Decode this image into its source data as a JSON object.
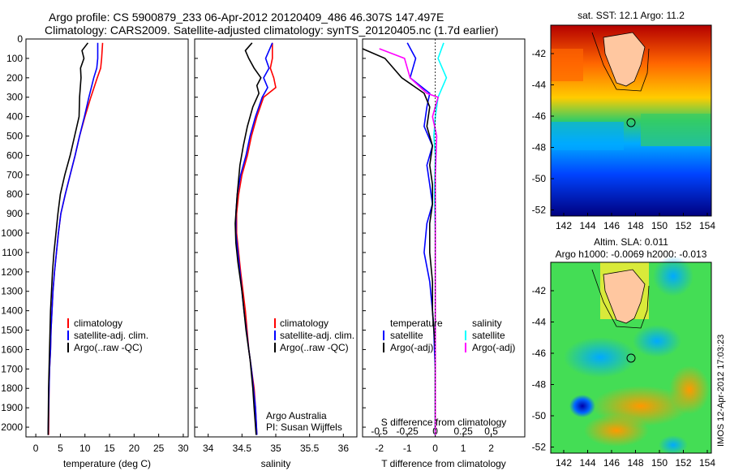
{
  "header": {
    "line1": "Argo profile: CS 5900879_233 06-Apr-2012 20120409_486 46.307S 147.497E",
    "line2": "Climatology: CARS2009. Satellite-adjusted climatology: synTS_20120405.nc (1.7d earlier)"
  },
  "side_caption": "IMOS 12-Apr-2012 17:03:23",
  "legends": {
    "temp": [
      "climatology",
      "satellite-adj. clim.",
      "Argo(..raw -QC)"
    ],
    "sal": [
      "climatology",
      "satellite-adj. clim.",
      "Argo(..raw -QC)"
    ],
    "diff_temp_title": "temperature",
    "diff_sal_title": "salinity",
    "diff_temp": [
      "satellite",
      "Argo(-adj)"
    ],
    "diff_sal": [
      "satellite",
      "Argo(-adj)"
    ]
  },
  "annotation": {
    "line1": "Argo Australia",
    "line2": "PI: Susan Wijffels"
  },
  "map_titles": {
    "sst": "sat. SST: 12.1  Argo: 11.2",
    "sla1": "Altim. SLA: 0.011",
    "sla2": "Argo h1000: -0.0069 h2000: -0.013"
  },
  "colors": {
    "climatology": "#ff0000",
    "satellite": "#0000ff",
    "argo": "#000000",
    "sal_satellite": "#00ffff",
    "sal_argo": "#ff00ff"
  },
  "chart_data": [
    {
      "type": "line",
      "xlabel": "temperature (deg C)",
      "xlim": [
        -2,
        31
      ],
      "ylim": [
        2050,
        0
      ],
      "y_ticks": [
        0,
        100,
        200,
        300,
        400,
        500,
        600,
        700,
        800,
        900,
        1000,
        1100,
        1200,
        1300,
        1400,
        1500,
        1600,
        1700,
        1800,
        1900,
        2000
      ],
      "x_ticks": [
        0,
        5,
        10,
        15,
        20,
        25,
        30
      ],
      "series": [
        {
          "name": "climatology",
          "x": [
            13.6,
            13.4,
            13.2,
            12.5,
            11.2,
            10.0,
            8.9,
            8.0,
            7.0,
            6.0,
            5.1,
            4.6,
            4.2,
            3.8,
            3.5,
            3.3,
            3.1,
            3.0,
            2.8,
            2.7,
            2.6
          ],
          "y": [
            20,
            100,
            150,
            200,
            300,
            400,
            500,
            600,
            700,
            800,
            900,
            1000,
            1100,
            1200,
            1300,
            1400,
            1500,
            1600,
            1700,
            1800,
            2040
          ]
        },
        {
          "name": "satellite-adj. clim.",
          "x": [
            12.6,
            12.6,
            12.4,
            11.8,
            10.8,
            9.9,
            8.9,
            8.0,
            7.0,
            6.0,
            5.1,
            4.6,
            4.2,
            3.8,
            3.5,
            3.3,
            3.1,
            3.0,
            2.8,
            2.7,
            2.5
          ],
          "y": [
            20,
            100,
            150,
            200,
            300,
            400,
            500,
            600,
            700,
            800,
            900,
            1000,
            1100,
            1200,
            1300,
            1400,
            1500,
            1600,
            1700,
            1800,
            2040
          ]
        },
        {
          "name": "Argo(..raw -QC)",
          "x": [
            10.6,
            9.4,
            9.8,
            9.1,
            9.2,
            8.9,
            8.8,
            7.9,
            7.0,
            5.9,
            5.0,
            4.5,
            4.1,
            3.7,
            3.4,
            3.2,
            3.0,
            2.9,
            2.8,
            2.6,
            2.5
          ],
          "y": [
            20,
            60,
            100,
            150,
            200,
            300,
            400,
            500,
            600,
            700,
            800,
            900,
            1000,
            1100,
            1200,
            1300,
            1400,
            1500,
            1600,
            1800,
            2040
          ]
        }
      ]
    },
    {
      "type": "line",
      "xlabel": "salinity",
      "xlim": [
        33.8,
        36.2
      ],
      "ylim": [
        2050,
        0
      ],
      "x_ticks": [
        34,
        34.5,
        35,
        35.5,
        36
      ],
      "series": [
        {
          "name": "climatology",
          "x": [
            34.95,
            34.95,
            34.92,
            34.97,
            35.0,
            34.82,
            34.72,
            34.64,
            34.58,
            34.5,
            34.45,
            34.42,
            34.42,
            34.45,
            34.48,
            34.55,
            34.6,
            34.64,
            34.68,
            34.7,
            34.72
          ],
          "y": [
            20,
            100,
            150,
            200,
            250,
            300,
            400,
            500,
            600,
            700,
            800,
            900,
            1000,
            1100,
            1200,
            1400,
            1600,
            1700,
            1800,
            1900,
            2040
          ]
        },
        {
          "name": "satellite-adj. clim.",
          "x": [
            34.95,
            34.85,
            34.9,
            34.82,
            34.88,
            34.8,
            34.7,
            34.62,
            34.56,
            34.48,
            34.43,
            34.41,
            34.41,
            34.44,
            34.47,
            34.53,
            34.6,
            34.64,
            34.67,
            34.7,
            34.72
          ],
          "y": [
            20,
            100,
            150,
            200,
            250,
            300,
            400,
            500,
            600,
            700,
            800,
            900,
            1000,
            1100,
            1200,
            1400,
            1600,
            1700,
            1800,
            1900,
            2040
          ]
        },
        {
          "name": "Argo(..raw -QC)",
          "x": [
            34.65,
            34.55,
            34.6,
            34.68,
            34.78,
            34.72,
            34.75,
            34.66,
            34.58,
            34.52,
            34.47,
            34.43,
            34.4,
            34.41,
            34.44,
            34.5,
            34.56,
            34.62,
            34.66,
            34.68,
            34.71
          ],
          "y": [
            20,
            60,
            100,
            150,
            200,
            240,
            280,
            350,
            450,
            550,
            650,
            800,
            950,
            1050,
            1150,
            1300,
            1500,
            1650,
            1800,
            1900,
            2040
          ]
        }
      ]
    },
    {
      "type": "line",
      "title": "S difference from climatology",
      "xlabel": "T difference from climatology",
      "xlim": [
        -2.6,
        3.2
      ],
      "ylim": [
        2050,
        0
      ],
      "x_ticks": [
        -2,
        -1,
        0,
        1,
        2
      ],
      "secondary_x_ticks": [
        "-0.5",
        "-0.25",
        "0",
        "0.25",
        "0.5"
      ],
      "series": [
        {
          "name": "temperature satellite",
          "x": [
            -1.0,
            -0.7,
            -0.9,
            -0.2,
            -0.3,
            -0.4,
            -0.1,
            -0.3,
            -0.2,
            -0.1,
            -0.3,
            -0.4,
            -0.2,
            -0.1,
            -0.05,
            -0.03,
            0,
            0,
            0,
            0
          ],
          "y": [
            20,
            100,
            200,
            280,
            350,
            450,
            550,
            650,
            750,
            850,
            950,
            1100,
            1250,
            1400,
            1500,
            1600,
            1700,
            1800,
            1900,
            2040
          ]
        },
        {
          "name": "temperature Argo(-adj)",
          "x": [
            -2.6,
            -1.8,
            -1.2,
            -0.4,
            -0.2,
            -0.3,
            -0.1,
            -0.2,
            -0.1,
            -0.1,
            -0.2,
            -0.2,
            -0.1,
            -0.1,
            -0.05,
            0,
            0,
            0,
            0,
            0
          ],
          "y": [
            50,
            100,
            200,
            280,
            350,
            450,
            550,
            650,
            750,
            850,
            950,
            1100,
            1250,
            1400,
            1500,
            1600,
            1700,
            1800,
            1900,
            2040
          ]
        },
        {
          "name": "salinity satellite",
          "x": [
            0.3,
            0.1,
            0.4,
            0.1,
            0.0,
            -0.05,
            0.0,
            -0.03,
            0.0,
            0.0,
            0.0,
            0.0,
            0.0,
            0.0,
            0.0
          ],
          "y": [
            20,
            100,
            200,
            300,
            400,
            500,
            600,
            800,
            1000,
            1200,
            1400,
            1600,
            1800,
            1900,
            2040
          ]
        },
        {
          "name": "salinity Argo(-adj)",
          "x": [
            -2.0,
            -1.1,
            -0.9,
            -0.3,
            0.1,
            -0.1,
            0.05,
            0.0,
            0.0,
            0.0,
            0.0,
            0.0
          ],
          "y": [
            50,
            100,
            200,
            280,
            300,
            400,
            500,
            700,
            900,
            1200,
            1600,
            2040
          ]
        }
      ]
    }
  ],
  "maps": {
    "lat_ticks": [
      "-42",
      "-44",
      "-46",
      "-48",
      "-50",
      "-52"
    ],
    "lon_ticks": [
      "142",
      "144",
      "146",
      "148",
      "150",
      "152",
      "154"
    ]
  }
}
